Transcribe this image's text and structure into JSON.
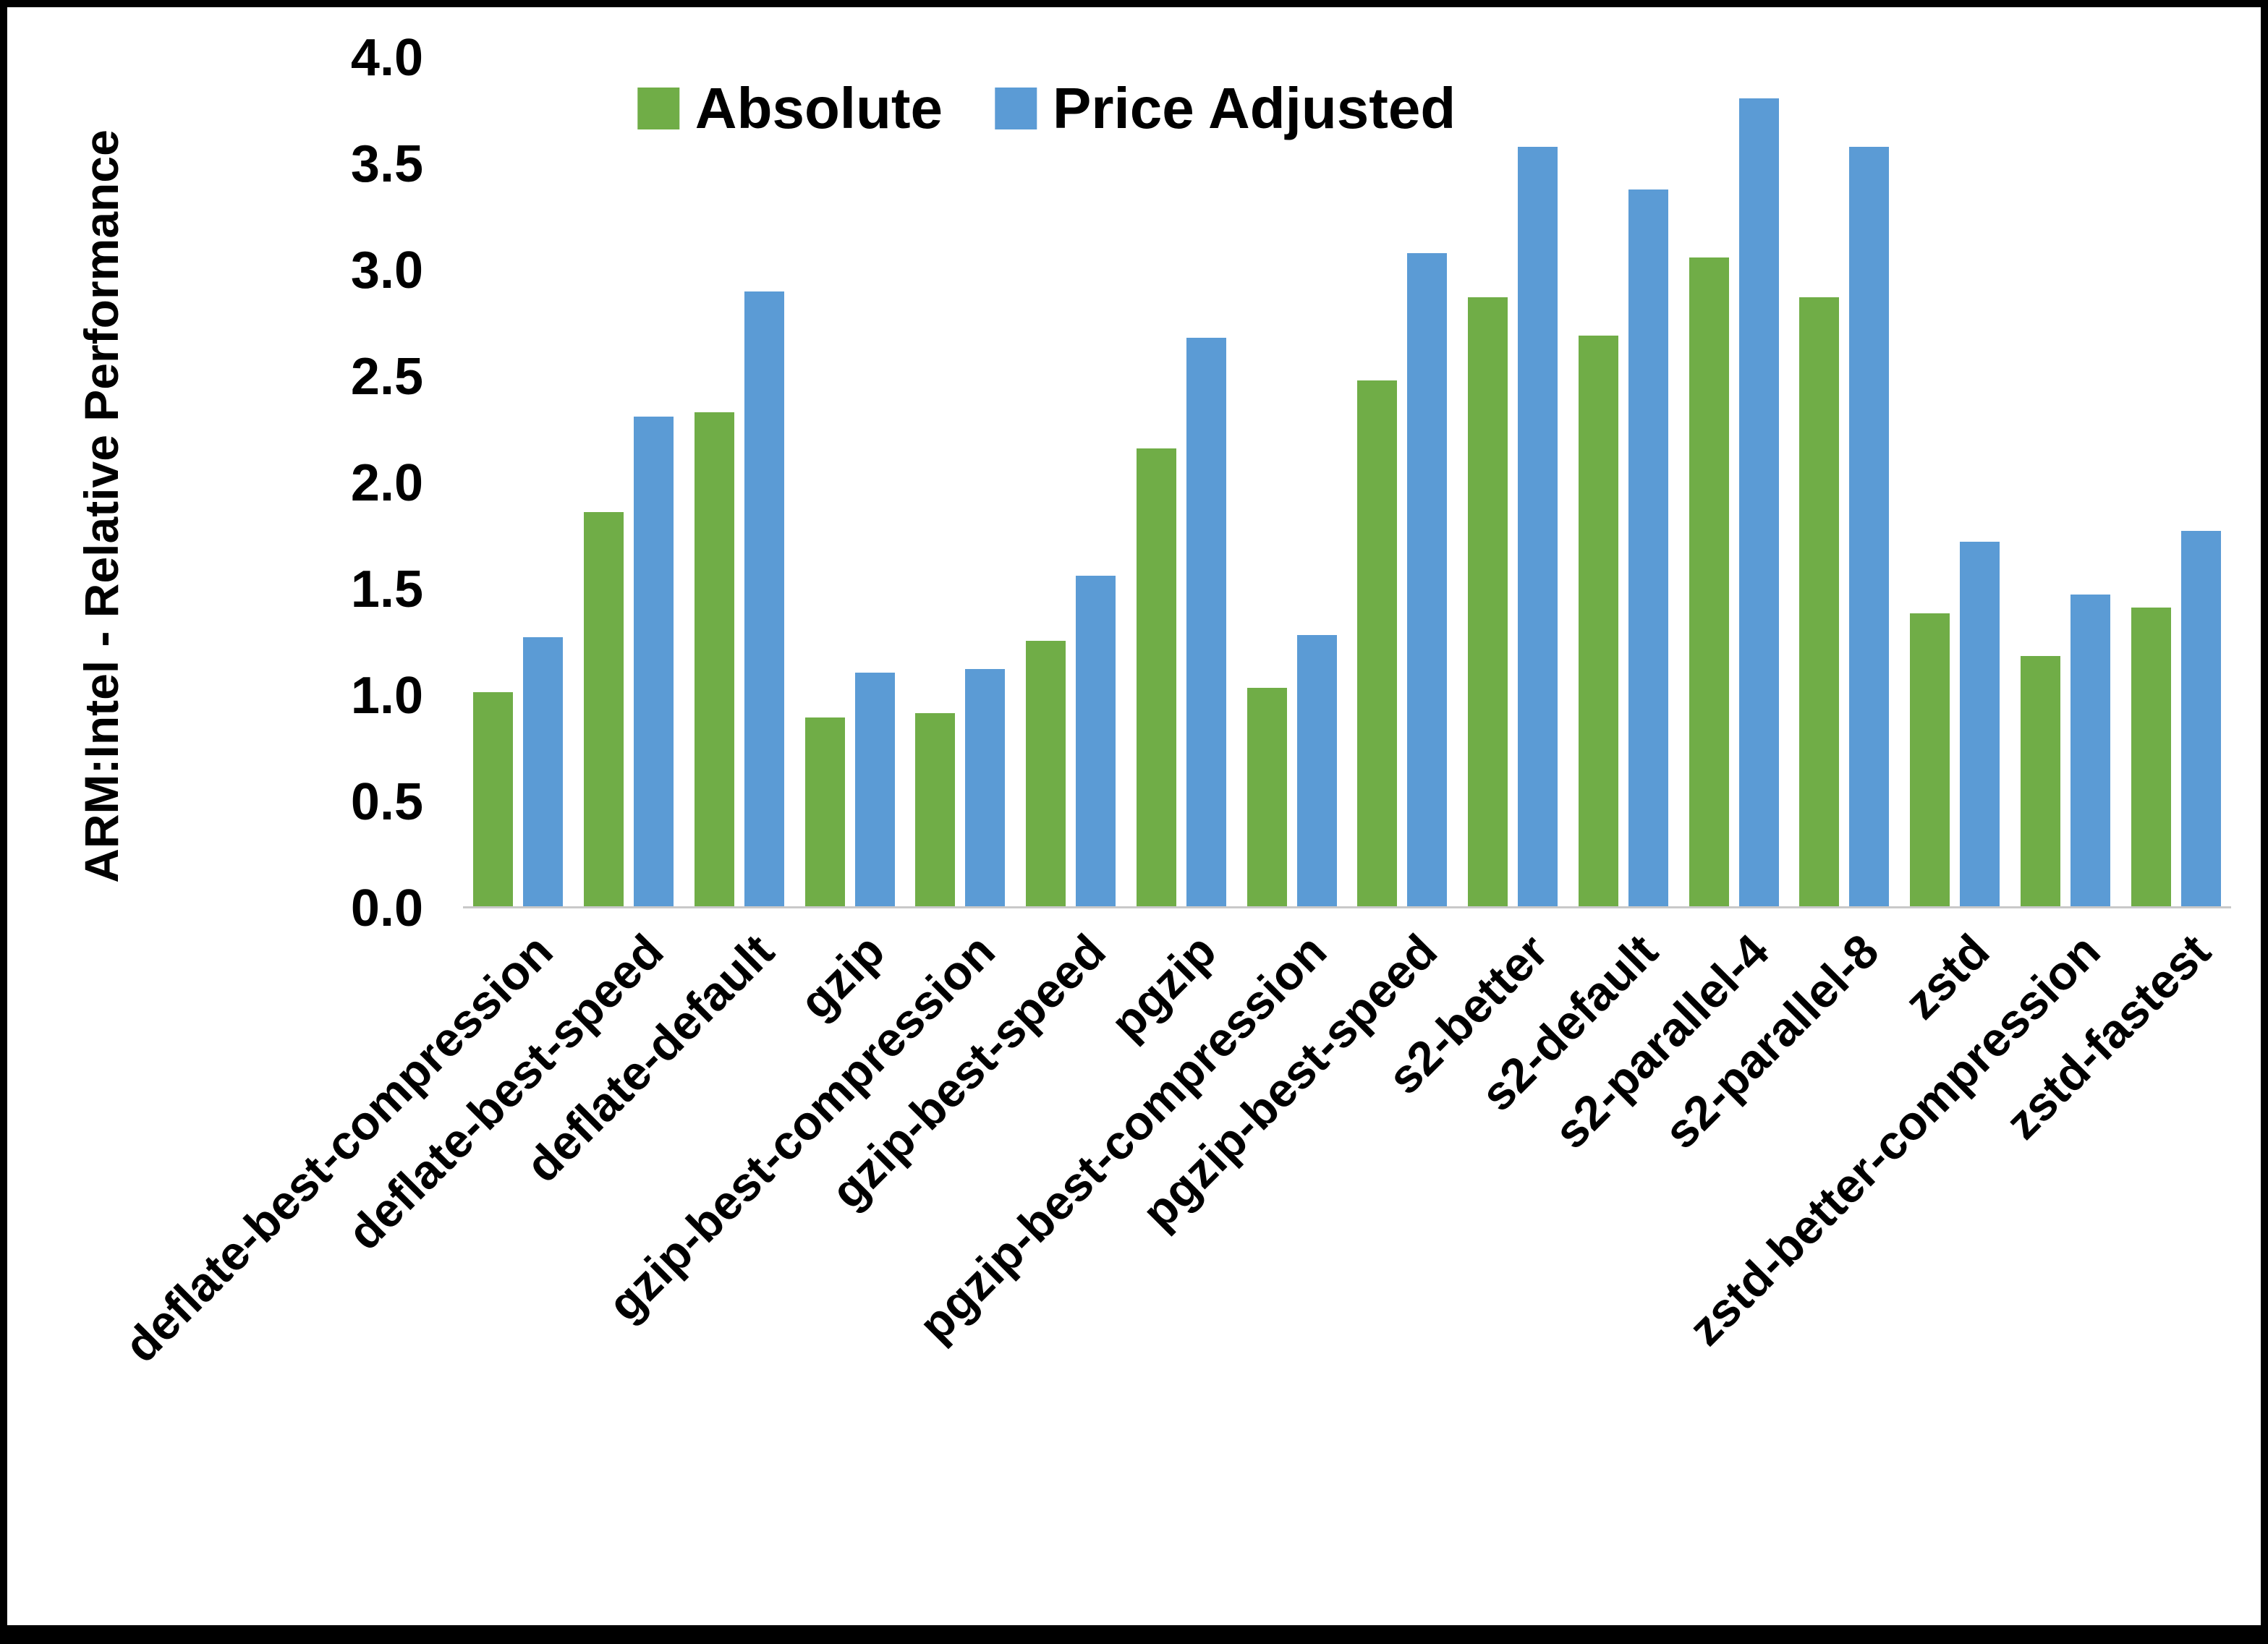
{
  "chart_data": {
    "type": "bar",
    "title": "",
    "xlabel": "",
    "ylabel": "ARM:Intel - Relative Performance",
    "ylim": [
      0,
      4
    ],
    "ytick_step": 0.5,
    "grid": false,
    "legend_position": "top-center-inside",
    "categories": [
      "deflate-best-compression",
      "deflate-best-speed",
      "deflate-default",
      "gzip",
      "gzip-best-compression",
      "gzip-best-speed",
      "pgzip",
      "pgzip-best-compression",
      "pgzip-best-speed",
      "s2-better",
      "s2-default",
      "s2-parallel-4",
      "s2-parallel-8",
      "zstd",
      "zstd-better-compression",
      "zstd-fastest"
    ],
    "series": [
      {
        "name": "Absolute",
        "color": "#70AD47",
        "values": [
          1.01,
          1.86,
          2.33,
          0.89,
          0.91,
          1.25,
          2.16,
          1.03,
          2.48,
          2.87,
          2.69,
          3.06,
          2.87,
          1.38,
          1.18,
          1.41
        ]
      },
      {
        "name": "Price Adjusted",
        "color": "#5B9BD5",
        "values": [
          1.27,
          2.31,
          2.9,
          1.1,
          1.12,
          1.56,
          2.68,
          1.28,
          3.08,
          3.58,
          3.38,
          3.81,
          3.58,
          1.72,
          1.47,
          1.77
        ]
      }
    ],
    "colors": {
      "axis_line": "#C9C9C9",
      "text": "#000000",
      "frame": "#000000",
      "background": "#FFFFFF"
    }
  }
}
